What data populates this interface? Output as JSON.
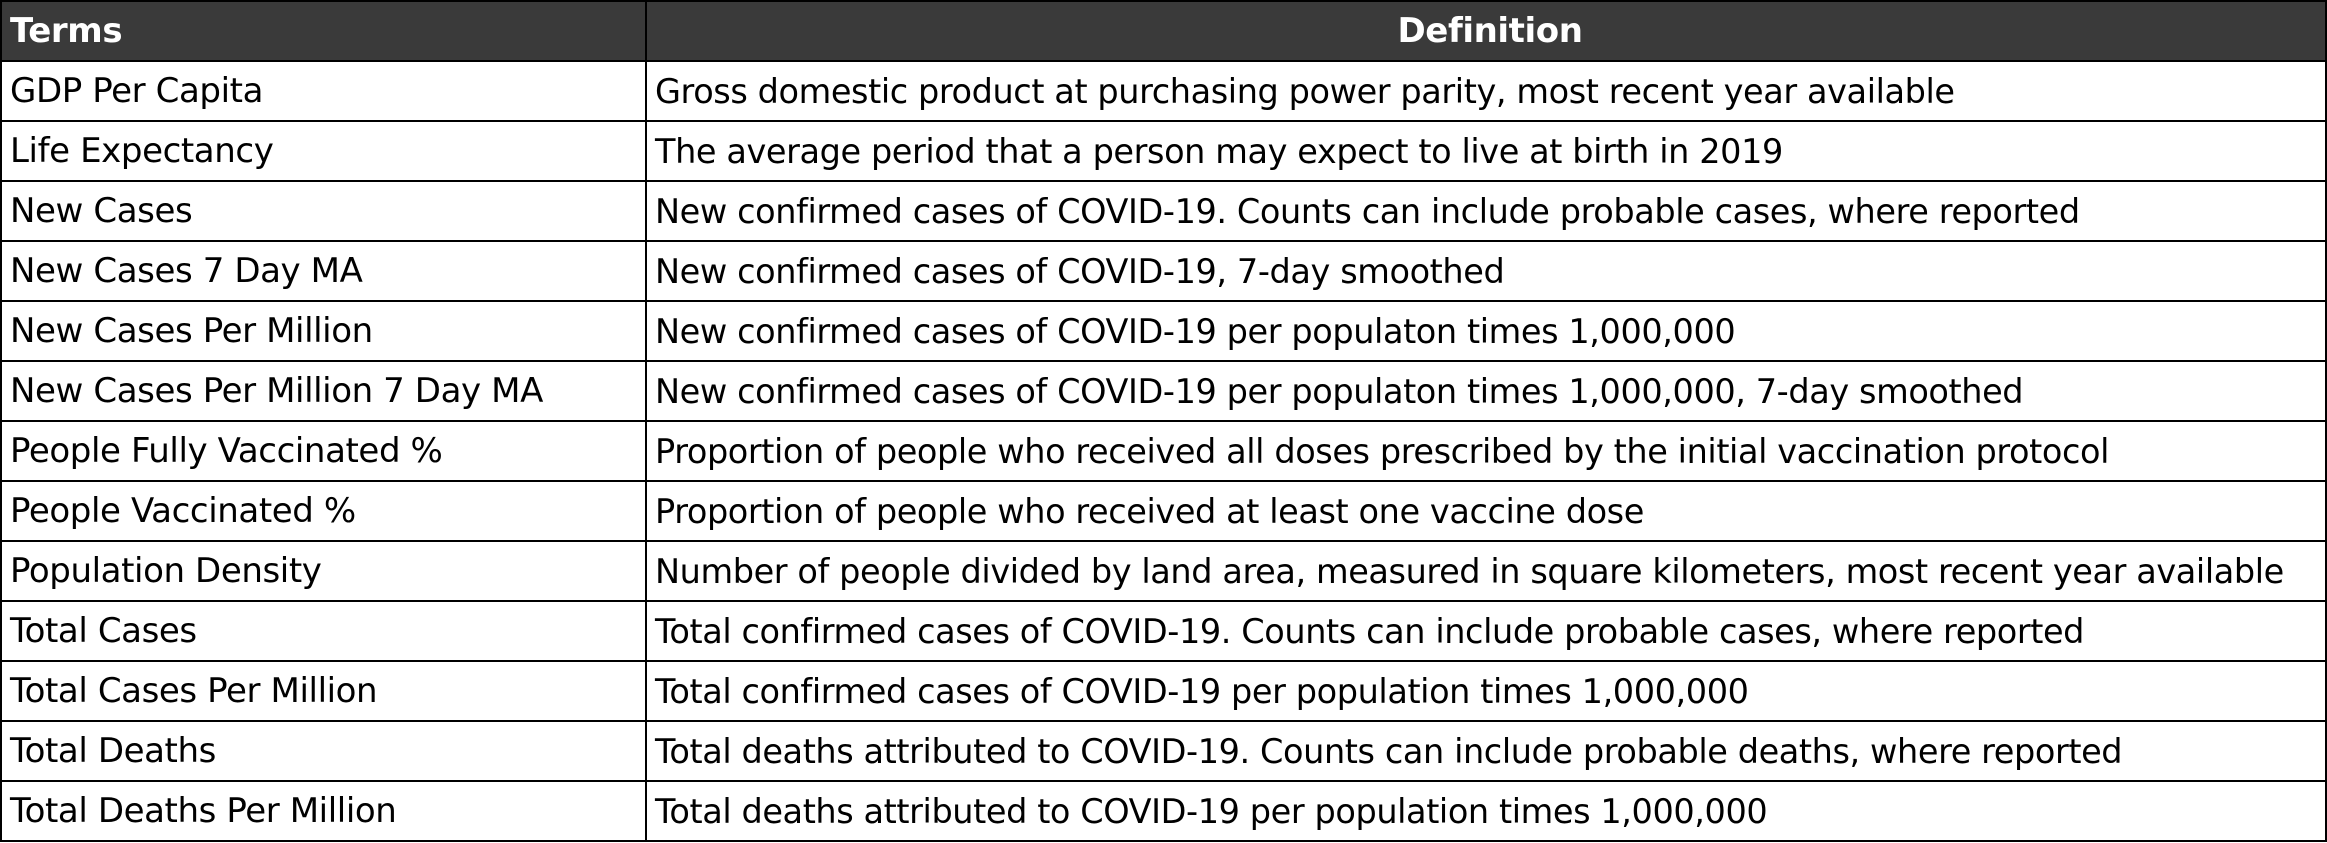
{
  "table": {
    "headers": {
      "term": "Terms",
      "definition": "Definition"
    },
    "rows": [
      {
        "term": "GDP Per Capita",
        "definition": "Gross domestic product at purchasing power parity, most recent year available"
      },
      {
        "term": "Life Expectancy",
        "definition": "The average period that a person may expect to live at birth in 2019"
      },
      {
        "term": "New Cases",
        "definition": "New confirmed cases of COVID-19. Counts can include probable cases, where reported"
      },
      {
        "term": "New Cases 7 Day MA",
        "definition": "New confirmed cases of COVID-19, 7-day smoothed"
      },
      {
        "term": "New Cases Per Million",
        "definition": "New confirmed cases of COVID-19 per populaton times 1,000,000"
      },
      {
        "term": "New Cases Per Million 7 Day MA",
        "definition": "New confirmed cases of COVID-19 per populaton times 1,000,000, 7-day smoothed"
      },
      {
        "term": "People Fully Vaccinated %",
        "definition": "Proportion of people who received all doses prescribed by the initial vaccination protocol"
      },
      {
        "term": "People Vaccinated %",
        "definition": "Proportion of people who received at least one vaccine dose"
      },
      {
        "term": "Population Density",
        "definition": "Number of people divided by land area, measured in square kilometers, most recent year available"
      },
      {
        "term": "Total Cases",
        "definition": "Total confirmed cases of COVID-19. Counts can include probable cases, where reported"
      },
      {
        "term": "Total Cases Per Million",
        "definition": "Total confirmed cases of COVID-19 per population times 1,000,000"
      },
      {
        "term": "Total Deaths",
        "definition": "Total deaths attributed to COVID-19. Counts can include probable deaths, where reported"
      },
      {
        "term": "Total Deaths Per Million",
        "definition": "Total deaths attributed to COVID-19 per population times 1,000,000"
      }
    ]
  },
  "colors": {
    "header_background": "#3a3a3a",
    "header_text": "#ffffff",
    "border": "#000000",
    "cell_text": "#000000"
  }
}
